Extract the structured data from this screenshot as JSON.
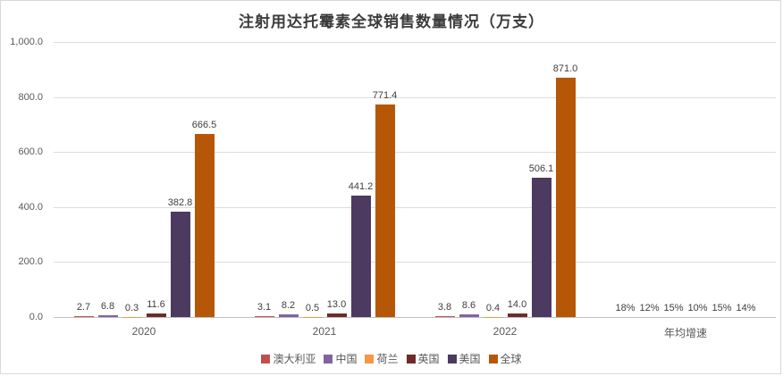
{
  "chart_data": {
    "type": "bar",
    "title": "注射用达托霉素全球销售数量情况（万支）",
    "categories": [
      "2020",
      "2021",
      "2022",
      "年均增速"
    ],
    "series": [
      {
        "name": "澳大利亚",
        "color": "#C0504D",
        "values": [
          2.7,
          3.1,
          3.8
        ],
        "growth": "18%"
      },
      {
        "name": "中国",
        "color": "#8064A2",
        "values": [
          6.8,
          8.2,
          8.6
        ],
        "growth": "12%"
      },
      {
        "name": "荷兰",
        "color": "#F79646",
        "values": [
          0.3,
          0.5,
          0.4
        ],
        "growth": "15%"
      },
      {
        "name": "英国",
        "color": "#6E2B28",
        "values": [
          11.6,
          13.0,
          14.0
        ],
        "growth": "10%"
      },
      {
        "name": "美国",
        "color": "#4C3A60",
        "values": [
          382.8,
          441.2,
          506.1
        ],
        "growth": "15%"
      },
      {
        "name": "全球",
        "color": "#B65708",
        "values": [
          666.5,
          771.4,
          871.0
        ],
        "growth": "14%"
      }
    ],
    "ylabel": "",
    "xlabel": "",
    "ylim": [
      0,
      1000
    ],
    "ytick_step": 200,
    "ytick_labels": [
      "0.0",
      "200.0",
      "400.0",
      "600.0",
      "800.0",
      "1,000.0"
    ],
    "grid": true,
    "legend_position": "bottom",
    "colors": {
      "gridline": "#dcdcdc",
      "axis_line": "#bfbfbf",
      "label_text": "#404040",
      "tick_text": "#595959",
      "title_text": "#3b3b3b",
      "frame_border": "#d9d9d9"
    }
  }
}
